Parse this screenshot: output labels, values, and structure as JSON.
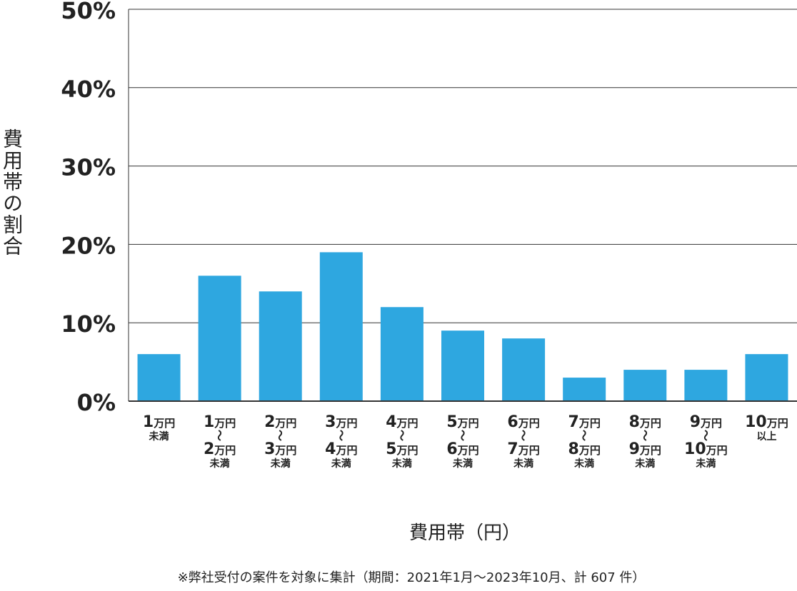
{
  "chart_data": {
    "type": "bar",
    "ylabel": "費用帯の割合",
    "xlabel": "費用帯（円）",
    "yticks": [
      "0%",
      "10%",
      "20%",
      "30%",
      "40%",
      "50%"
    ],
    "ylim": [
      0,
      50
    ],
    "grid": true,
    "bar_color": "#2ea7e0",
    "categories": [
      [
        "1万円",
        "未満"
      ],
      [
        "1万円",
        "〜",
        "2万円",
        "未満"
      ],
      [
        "2万円",
        "〜",
        "3万円",
        "未満"
      ],
      [
        "3万円",
        "〜",
        "4万円",
        "未満"
      ],
      [
        "4万円",
        "〜",
        "5万円",
        "未満"
      ],
      [
        "5万円",
        "〜",
        "6万円",
        "未満"
      ],
      [
        "6万円",
        "〜",
        "7万円",
        "未満"
      ],
      [
        "7万円",
        "〜",
        "8万円",
        "未満"
      ],
      [
        "8万円",
        "〜",
        "9万円",
        "未満"
      ],
      [
        "9万円",
        "〜",
        "10万円",
        "未満"
      ],
      [
        "10万円",
        "以上"
      ]
    ],
    "values": [
      6,
      16,
      14,
      19,
      12,
      9,
      8,
      3,
      4,
      4,
      6
    ]
  },
  "note": "※弊社受付の案件を対象に集計（期間：2021年1月～2023年10月、計 607 件）"
}
